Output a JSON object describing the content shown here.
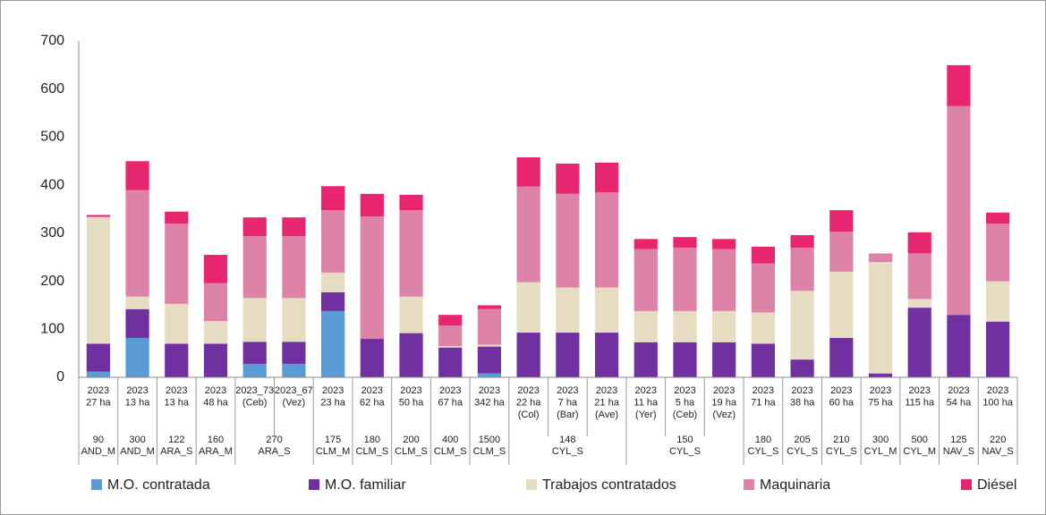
{
  "chart_data": {
    "type": "stacked_bar",
    "categories": [
      [
        "2023",
        "27 ha"
      ],
      [
        "2023",
        "13 ha"
      ],
      [
        "2023",
        "13 ha"
      ],
      [
        "2023",
        "48 ha"
      ],
      [
        "2023_73",
        "(Ceb)"
      ],
      [
        "2023_67",
        "(Vez)"
      ],
      [
        "2023",
        "23 ha"
      ],
      [
        "2023",
        "62 ha"
      ],
      [
        "2023",
        "50 ha"
      ],
      [
        "2023",
        "67 ha"
      ],
      [
        "2023",
        "342 ha"
      ],
      [
        "2023",
        "22 ha",
        "(Col)"
      ],
      [
        "2023",
        "7 ha",
        "(Bar)"
      ],
      [
        "2023",
        "21 ha",
        "(Ave)"
      ],
      [
        "2023",
        "11 ha",
        "(Yer)"
      ],
      [
        "2023",
        "5 ha",
        "(Ceb)"
      ],
      [
        "2023",
        "19 ha",
        "(Vez)"
      ],
      [
        "2023",
        "71 ha"
      ],
      [
        "2023",
        "38 ha"
      ],
      [
        "2023",
        "60 ha"
      ],
      [
        "2023",
        "75 ha"
      ],
      [
        "2023",
        "115 ha"
      ],
      [
        "2023",
        "54 ha"
      ],
      [
        "2023",
        "100 ha"
      ]
    ],
    "groups": [
      {
        "label": [
          "90",
          "AND_M"
        ],
        "span": 1
      },
      {
        "label": [
          "300",
          "AND_M"
        ],
        "span": 1
      },
      {
        "label": [
          "122",
          "ARA_S"
        ],
        "span": 1
      },
      {
        "label": [
          "160",
          "ARA_M"
        ],
        "span": 1
      },
      {
        "label": [
          "270",
          "ARA_S"
        ],
        "span": 2
      },
      {
        "label": [
          "175",
          "CLM_M"
        ],
        "span": 1
      },
      {
        "label": [
          "180",
          "CLM_S"
        ],
        "span": 1
      },
      {
        "label": [
          "200",
          "CLM_S"
        ],
        "span": 1
      },
      {
        "label": [
          "400",
          "CLM_S"
        ],
        "span": 1
      },
      {
        "label": [
          "1500",
          "CLM_S"
        ],
        "span": 1
      },
      {
        "label": [
          "148",
          "CYL_S"
        ],
        "span": 3
      },
      {
        "label": [
          "150",
          "CYL_S"
        ],
        "span": 3
      },
      {
        "label": [
          "180",
          "CYL_S"
        ],
        "span": 1
      },
      {
        "label": [
          "205",
          "CYL_S"
        ],
        "span": 1
      },
      {
        "label": [
          "210",
          "CYL_S"
        ],
        "span": 1
      },
      {
        "label": [
          "300",
          "CYL_M"
        ],
        "span": 1
      },
      {
        "label": [
          "500",
          "CYL_M"
        ],
        "span": 1
      },
      {
        "label": [
          "125",
          "NAV_S"
        ],
        "span": 1
      },
      {
        "label": [
          "220",
          "NAV_S"
        ],
        "span": 1
      }
    ],
    "series": [
      {
        "name": "M.O. contratada",
        "color": "#5b9bd5",
        "values": [
          12,
          82,
          0,
          0,
          28,
          28,
          138,
          0,
          0,
          0,
          8,
          0,
          0,
          0,
          0,
          0,
          0,
          0,
          0,
          0,
          0,
          0,
          0,
          0
        ]
      },
      {
        "name": "M.O. familiar",
        "color": "#7030a0",
        "values": [
          58,
          60,
          70,
          70,
          46,
          46,
          39,
          80,
          92,
          62,
          56,
          93,
          93,
          93,
          73,
          73,
          73,
          70,
          37,
          82,
          8,
          145,
          130,
          116
        ]
      },
      {
        "name": "Trabajos contratados",
        "color": "#e6dcc2",
        "values": [
          263,
          26,
          83,
          47,
          91,
          91,
          41,
          0,
          76,
          3,
          4,
          105,
          94,
          94,
          65,
          65,
          65,
          65,
          143,
          138,
          232,
          18,
          0,
          84
        ]
      },
      {
        "name": "Maquinaria",
        "color": "#dd83a8",
        "values": [
          2,
          222,
          167,
          79,
          129,
          129,
          130,
          255,
          180,
          43,
          74,
          199,
          195,
          198,
          129,
          132,
          129,
          102,
          90,
          83,
          18,
          95,
          435,
          120
        ]
      },
      {
        "name": "Diésel",
        "color": "#e8266f",
        "values": [
          3,
          60,
          25,
          59,
          39,
          39,
          50,
          47,
          32,
          22,
          8,
          61,
          63,
          62,
          21,
          22,
          21,
          35,
          26,
          45,
          0,
          44,
          85,
          23
        ]
      }
    ],
    "ylim": [
      0,
      700
    ],
    "yticks": [
      0,
      100,
      200,
      300,
      400,
      500,
      600,
      700
    ],
    "grid": false,
    "legend": "bottom"
  }
}
